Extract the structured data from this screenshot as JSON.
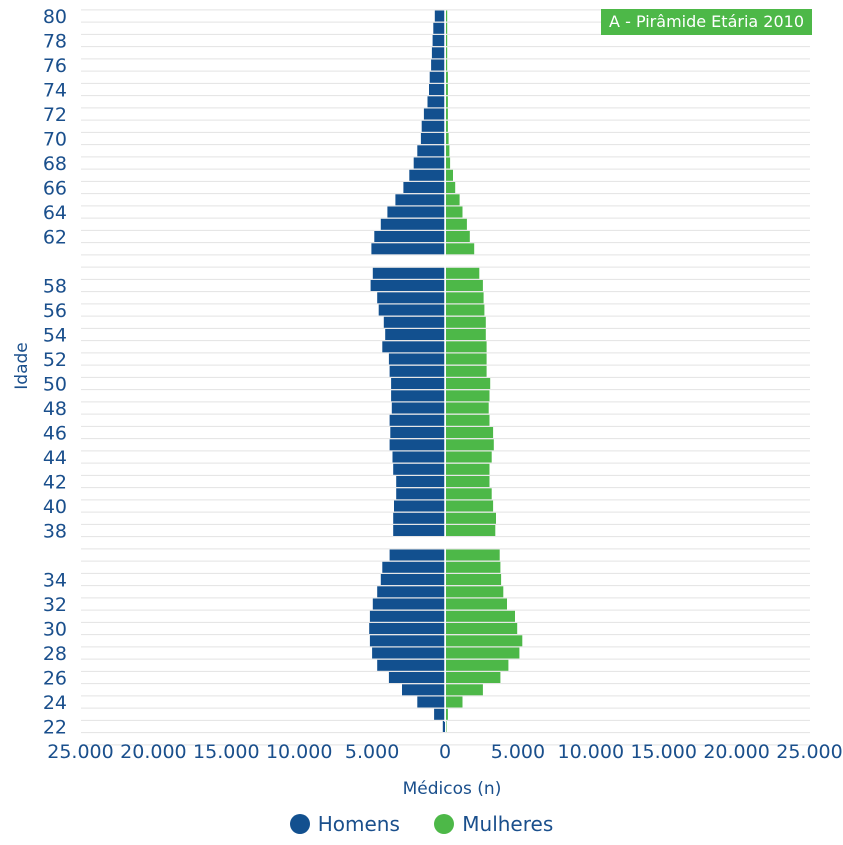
{
  "chart_data": {
    "type": "bar",
    "orientation": "horizontal-population-pyramid",
    "title": "A - Pirâmide Etária 2010",
    "xlabel": "Médicos (n)",
    "ylabel": "Idade",
    "x_ticks": [
      "25.000",
      "20.000",
      "15.000",
      "10.000",
      "5.000",
      "0",
      "5.000",
      "10.000",
      "15.000",
      "20.000",
      "25.000"
    ],
    "y_ticks": [
      "80",
      "78",
      "76",
      "74",
      "72",
      "70",
      "68",
      "66",
      "64",
      "62",
      "58",
      "56",
      "54",
      "52",
      "50",
      "48",
      "46",
      "44",
      "42",
      "40",
      "38",
      "34",
      "32",
      "30",
      "28",
      "26",
      "24",
      "22"
    ],
    "xlim": [
      -25000,
      25000
    ],
    "grid": true,
    "legend_position": "bottom",
    "categories": [
      "80",
      "79",
      "78",
      "77",
      "76",
      "75",
      "74",
      "73",
      "72",
      "71",
      "70",
      "69",
      "68",
      "67",
      "66",
      "65",
      "64",
      "63",
      "62",
      "61",
      "59",
      "58",
      "57",
      "56",
      "55",
      "54",
      "53",
      "52",
      "51",
      "50",
      "49",
      "48",
      "47",
      "46",
      "45",
      "44",
      "43",
      "42",
      "41",
      "40",
      "39",
      "38",
      "36",
      "35",
      "34",
      "33",
      "32",
      "31",
      "30",
      "29",
      "28",
      "27",
      "26",
      "25",
      "24",
      "23",
      "22"
    ],
    "series": [
      {
        "name": "Homens",
        "color": "#12508f",
        "values": [
          700,
          800,
          850,
          900,
          950,
          1050,
          1100,
          1200,
          1450,
          1600,
          1650,
          1900,
          2150,
          2450,
          2850,
          3400,
          3950,
          4400,
          4850,
          5050,
          4950,
          5100,
          4650,
          4550,
          4200,
          4100,
          4300,
          3850,
          3800,
          3700,
          3700,
          3650,
          3800,
          3750,
          3800,
          3600,
          3550,
          3350,
          3350,
          3500,
          3550,
          3550,
          3800,
          4300,
          4400,
          4650,
          4950,
          5150,
          5200,
          5150,
          5000,
          4650,
          3850,
          2950,
          1900,
          750,
          150
        ]
      },
      {
        "name": "Mulheres",
        "color": "#4db848",
        "values": [
          150,
          150,
          150,
          150,
          150,
          200,
          200,
          200,
          200,
          200,
          250,
          300,
          350,
          550,
          700,
          1000,
          1200,
          1500,
          1700,
          2000,
          2350,
          2600,
          2650,
          2700,
          2800,
          2800,
          2850,
          2850,
          2850,
          3100,
          3050,
          3000,
          3050,
          3300,
          3350,
          3200,
          3050,
          3050,
          3200,
          3300,
          3500,
          3450,
          3750,
          3800,
          3850,
          4000,
          4250,
          4800,
          4950,
          5300,
          5100,
          4350,
          3800,
          2600,
          1200,
          200,
          100
        ]
      }
    ]
  }
}
